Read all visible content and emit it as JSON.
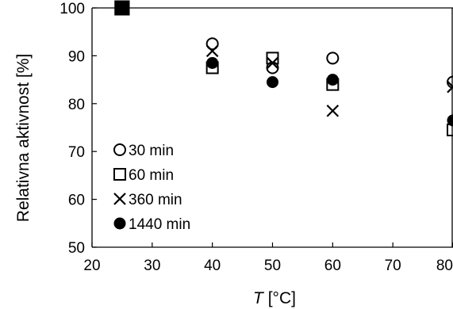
{
  "chart_data": {
    "type": "scatter",
    "title": "",
    "xlabel_var": "T",
    "xlabel_unit": " [°C]",
    "ylabel": "Relativna aktivnost [%]",
    "xlim": [
      20,
      80
    ],
    "ylim": [
      50,
      100
    ],
    "xticks": [
      20,
      30,
      40,
      50,
      60,
      70,
      80
    ],
    "yticks": [
      50,
      60,
      70,
      80,
      90,
      100
    ],
    "grid": false,
    "legend_position": "bottom-left",
    "x": [
      25,
      40,
      50,
      60,
      80
    ],
    "series": [
      {
        "name": "30 min",
        "marker": "circle-open",
        "values": [
          100,
          92.5,
          87.5,
          89.5,
          84.5
        ]
      },
      {
        "name": "60 min",
        "marker": "square-open",
        "values": [
          100,
          87.5,
          89.5,
          84.0,
          74.5
        ]
      },
      {
        "name": "360 min",
        "marker": "cross",
        "values": [
          100,
          91.0,
          88.5,
          78.5,
          83.5
        ]
      },
      {
        "name": "1440 min",
        "marker": "circle-filled",
        "values": [
          100,
          88.5,
          84.5,
          85.0,
          76.5
        ]
      }
    ]
  }
}
